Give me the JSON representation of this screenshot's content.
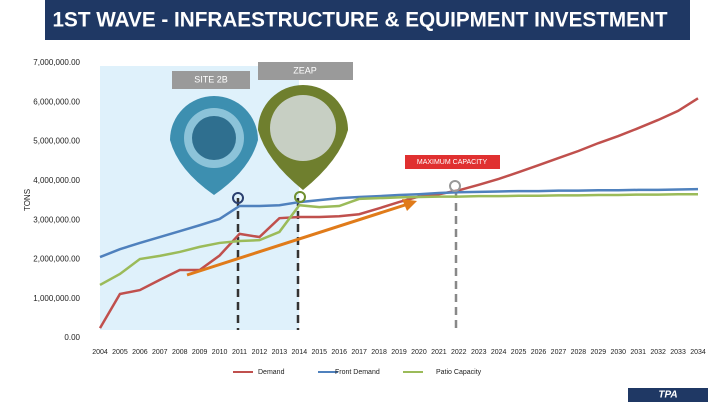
{
  "chart_data": {
    "type": "line",
    "title": "1ST WAVE - INFRAESTRUCTURE & EQUIPMENT INVESTMENT",
    "ylabel": "TONS",
    "annotations": [
      "SITE 2B",
      "ZEAP",
      "MAXIMUM CAPACITY"
    ],
    "logo": "TPA",
    "categories": [
      "2004",
      "2005",
      "2006",
      "2007",
      "2008",
      "2009",
      "2010",
      "2011",
      "2012",
      "2013",
      "2014",
      "2015",
      "2016",
      "2017",
      "2018",
      "2019",
      "2020",
      "2021",
      "2022",
      "2023",
      "2024",
      "2025",
      "2026",
      "2027",
      "2028",
      "2029",
      "2030",
      "2031",
      "2032",
      "2033",
      "2034"
    ],
    "series": [
      {
        "name": "Demand",
        "color": "#c0504d",
        "values": [
          250000,
          1120000,
          1220000,
          1480000,
          1730000,
          1730000,
          2100000,
          2650000,
          2570000,
          3050000,
          3080000,
          3080000,
          3100000,
          3150000,
          3300000,
          3460000,
          3600000,
          3660000,
          3760000,
          3900000,
          4050000,
          4220000,
          4400000,
          4580000,
          4760000,
          4960000,
          5140000,
          5340000,
          5550000,
          5780000,
          6100000
        ]
      },
      {
        "name": "Front Demand",
        "color": "#4f81bd",
        "values": [
          2060000,
          2260000,
          2420000,
          2570000,
          2720000,
          2870000,
          3030000,
          3360000,
          3360000,
          3380000,
          3460000,
          3510000,
          3560000,
          3590000,
          3610000,
          3640000,
          3660000,
          3690000,
          3710000,
          3720000,
          3730000,
          3740000,
          3740000,
          3750000,
          3750000,
          3760000,
          3760000,
          3770000,
          3770000,
          3780000,
          3790000
        ]
      },
      {
        "name": "Patio Capacity",
        "color": "#9bbb59",
        "values": [
          1350000,
          1630000,
          2010000,
          2090000,
          2190000,
          2320000,
          2420000,
          2470000,
          2490000,
          2700000,
          3380000,
          3330000,
          3360000,
          3540000,
          3560000,
          3580000,
          3590000,
          3600000,
          3600000,
          3610000,
          3610000,
          3620000,
          3620000,
          3630000,
          3630000,
          3640000,
          3640000,
          3650000,
          3650000,
          3660000,
          3660000
        ]
      }
    ],
    "ylim": [
      0,
      7000000
    ],
    "yticks": [
      {
        "value": 0,
        "label": "0.00"
      },
      {
        "value": 1000000,
        "label": "1,000,000.00"
      },
      {
        "value": 2000000,
        "label": "2,000,000.00"
      },
      {
        "value": 3000000,
        "label": "3,000,000.00"
      },
      {
        "value": 4000000,
        "label": "4,000,000.00"
      },
      {
        "value": 5000000,
        "label": "5,000,000.00"
      },
      {
        "value": 6000000,
        "label": "6,000,000.00"
      },
      {
        "value": 7000000,
        "label": "7,000,000.00"
      }
    ],
    "grid": false
  }
}
